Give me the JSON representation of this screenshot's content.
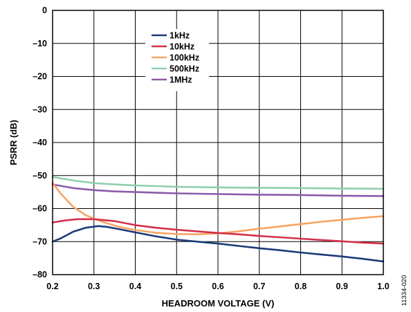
{
  "chart_data": {
    "type": "line",
    "xlabel": "HEADROOM VOLTAGE (V)",
    "ylabel": "PSRR (dB)",
    "xlim": [
      0.2,
      1.0
    ],
    "ylim": [
      -80,
      0
    ],
    "x_ticks": [
      0.2,
      0.3,
      0.4,
      0.5,
      0.6,
      0.7,
      0.8,
      0.9,
      1.0
    ],
    "x_tick_labels": [
      "0.2",
      "0.3",
      "0.4",
      "0.5",
      "0.6",
      "0.7",
      "0.8",
      "0.9",
      "1.0"
    ],
    "y_ticks": [
      0,
      -10,
      -20,
      -30,
      -40,
      -50,
      -60,
      -70,
      -80
    ],
    "y_tick_labels": [
      "0",
      "–10",
      "–20",
      "–30",
      "–40",
      "–50",
      "–60",
      "–70",
      "–80"
    ],
    "grid": true,
    "legend_position": "top-center",
    "figure_id": "11334-020",
    "series": [
      {
        "name": "1kHz",
        "color": "#1a3a78",
        "points": [
          [
            0.2,
            -70
          ],
          [
            0.22,
            -69
          ],
          [
            0.25,
            -67
          ],
          [
            0.28,
            -65.8
          ],
          [
            0.31,
            -65.3
          ],
          [
            0.33,
            -65.5
          ],
          [
            0.36,
            -66.2
          ],
          [
            0.4,
            -67.2
          ],
          [
            0.45,
            -68.4
          ],
          [
            0.5,
            -69.4
          ],
          [
            0.55,
            -70
          ],
          [
            0.6,
            -70.6
          ],
          [
            0.65,
            -71.3
          ],
          [
            0.7,
            -72
          ],
          [
            0.75,
            -72.6
          ],
          [
            0.8,
            -73.3
          ],
          [
            0.85,
            -73.9
          ],
          [
            0.9,
            -74.5
          ],
          [
            0.95,
            -75.2
          ],
          [
            1.0,
            -76
          ]
        ]
      },
      {
        "name": "10kHz",
        "color": "#d2304a",
        "points": [
          [
            0.2,
            -64.2
          ],
          [
            0.23,
            -63.6
          ],
          [
            0.26,
            -63.2
          ],
          [
            0.3,
            -63.2
          ],
          [
            0.35,
            -63.8
          ],
          [
            0.4,
            -65
          ],
          [
            0.45,
            -65.8
          ],
          [
            0.5,
            -66.4
          ],
          [
            0.55,
            -66.9
          ],
          [
            0.6,
            -67.4
          ],
          [
            0.65,
            -67.8
          ],
          [
            0.7,
            -68.3
          ],
          [
            0.75,
            -68.7
          ],
          [
            0.8,
            -69.1
          ],
          [
            0.85,
            -69.5
          ],
          [
            0.9,
            -69.9
          ],
          [
            0.95,
            -70.3
          ],
          [
            1.0,
            -70.6
          ]
        ]
      },
      {
        "name": "100kHz",
        "color": "#f6a462",
        "points": [
          [
            0.2,
            -52.2
          ],
          [
            0.22,
            -55.5
          ],
          [
            0.25,
            -59.5
          ],
          [
            0.28,
            -62
          ],
          [
            0.32,
            -64
          ],
          [
            0.36,
            -65.5
          ],
          [
            0.4,
            -66.5
          ],
          [
            0.45,
            -67.3
          ],
          [
            0.5,
            -67.7
          ],
          [
            0.55,
            -67.8
          ],
          [
            0.6,
            -67.5
          ],
          [
            0.65,
            -66.9
          ],
          [
            0.7,
            -66.1
          ],
          [
            0.75,
            -65.4
          ],
          [
            0.8,
            -64.7
          ],
          [
            0.85,
            -64
          ],
          [
            0.9,
            -63.4
          ],
          [
            0.95,
            -62.8
          ],
          [
            1.0,
            -62.3
          ]
        ]
      },
      {
        "name": "500kHz",
        "color": "#8fcfae",
        "points": [
          [
            0.2,
            -50.4
          ],
          [
            0.25,
            -51.5
          ],
          [
            0.3,
            -52.3
          ],
          [
            0.35,
            -52.7
          ],
          [
            0.4,
            -53
          ],
          [
            0.45,
            -53.2
          ],
          [
            0.5,
            -53.4
          ],
          [
            0.6,
            -53.6
          ],
          [
            0.7,
            -53.7
          ],
          [
            0.8,
            -53.8
          ],
          [
            0.9,
            -53.9
          ],
          [
            1.0,
            -54
          ]
        ]
      },
      {
        "name": "1MHz",
        "color": "#8a5aab",
        "points": [
          [
            0.2,
            -52.7
          ],
          [
            0.25,
            -53.8
          ],
          [
            0.3,
            -54.4
          ],
          [
            0.35,
            -54.8
          ],
          [
            0.4,
            -55
          ],
          [
            0.45,
            -55.2
          ],
          [
            0.5,
            -55.4
          ],
          [
            0.6,
            -55.6
          ],
          [
            0.7,
            -55.8
          ],
          [
            0.8,
            -55.9
          ],
          [
            0.9,
            -56.1
          ],
          [
            1.0,
            -56.2
          ]
        ]
      }
    ]
  }
}
